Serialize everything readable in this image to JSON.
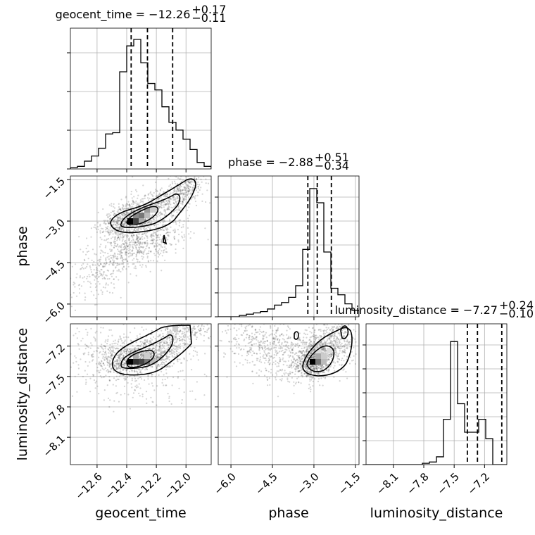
{
  "chart_data": {
    "type": "corner",
    "parameters": [
      "geocent_time",
      "phase",
      "luminosity_distance"
    ],
    "titles": [
      {
        "param": "geocent_time",
        "text": "geocent_time = −12.26",
        "sup": "+0.17",
        "sub": "−0.11"
      },
      {
        "param": "phase",
        "text": "phase = −2.88",
        "sup": "+0.51",
        "sub": "−0.34"
      },
      {
        "param": "luminosity_distance",
        "text": "luminosity_distance = −7.27",
        "sup": "+0.24",
        "sub": "−0.10"
      }
    ],
    "axis_labels": {
      "geocent_time": "geocent_time",
      "phase": "phase",
      "luminosity_distance": "luminosity_distance"
    },
    "ranges": {
      "geocent_time": [
        -12.78,
        -11.83
      ],
      "phase": [
        -6.46,
        -1.37
      ],
      "luminosity_distance": [
        -8.37,
        -6.98
      ]
    },
    "ticks": {
      "geocent_time": {
        "values": [
          -12.6,
          -12.4,
          -12.2,
          -12.0
        ],
        "labels": [
          "−12.6",
          "−12.4",
          "−12.2",
          "−12.0"
        ]
      },
      "phase": {
        "values": [
          -6.0,
          -4.5,
          -3.0,
          -1.5
        ],
        "labels": [
          "−6.0",
          "−4.5",
          "−3.0",
          "−1.5"
        ]
      },
      "luminosity_distance": {
        "values": [
          -8.1,
          -7.8,
          -7.5,
          -7.2
        ],
        "labels": [
          "−8.1",
          "−7.8",
          "−7.5",
          "−7.2"
        ]
      }
    },
    "quantiles": {
      "geocent_time": [
        -12.37,
        -12.26,
        -12.09
      ],
      "phase": [
        -3.22,
        -2.88,
        -2.37
      ],
      "luminosity_distance": [
        -7.37,
        -7.27,
        -7.03
      ]
    },
    "histograms": {
      "geocent_time": {
        "edges": [
          -12.78,
          -12.7325,
          -12.685,
          -12.6375,
          -12.59,
          -12.5425,
          -12.495,
          -12.4475,
          -12.4,
          -12.3525,
          -12.305,
          -12.2575,
          -12.21,
          -12.1625,
          -12.115,
          -12.0675,
          -12.02,
          -11.9725,
          -11.925,
          -11.8775,
          -11.83
        ],
        "counts": [
          0.01,
          0.02,
          0.06,
          0.1,
          0.16,
          0.27,
          0.28,
          0.75,
          0.95,
          1.0,
          0.82,
          0.66,
          0.61,
          0.48,
          0.36,
          0.3,
          0.23,
          0.15,
          0.05,
          0.02
        ]
      },
      "phase": {
        "edges": [
          -6.46,
          -6.2055,
          -5.951,
          -5.6965,
          -5.442,
          -5.1875,
          -4.933,
          -4.6785,
          -4.424,
          -4.1695,
          -3.915,
          -3.6605,
          -3.406,
          -3.1515,
          -2.897,
          -2.6425,
          -2.388,
          -2.1335,
          -1.879,
          -1.6245,
          -1.37
        ],
        "counts": [
          0.0,
          0.0,
          0.0,
          0.01,
          0.02,
          0.03,
          0.04,
          0.06,
          0.09,
          0.11,
          0.15,
          0.24,
          0.52,
          0.99,
          0.88,
          0.5,
          0.22,
          0.17,
          0.1,
          0.05
        ]
      },
      "luminosity_distance": {
        "edges": [
          -8.37,
          -8.3005,
          -8.231,
          -8.1615,
          -8.092,
          -8.0225,
          -7.953,
          -7.8835,
          -7.814,
          -7.7445,
          -7.675,
          -7.6055,
          -7.536,
          -7.4665,
          -7.397,
          -7.3275,
          -7.258,
          -7.1885,
          -7.119,
          -7.0495,
          -6.98
        ],
        "counts": [
          0.0,
          0.0,
          0.0,
          0.0,
          0.0,
          0.0,
          0.0,
          0.0,
          0.01,
          0.02,
          0.06,
          0.35,
          0.95,
          0.47,
          0.25,
          0.25,
          0.35,
          0.2,
          0.0,
          0.0
        ]
      }
    },
    "grid": true
  }
}
